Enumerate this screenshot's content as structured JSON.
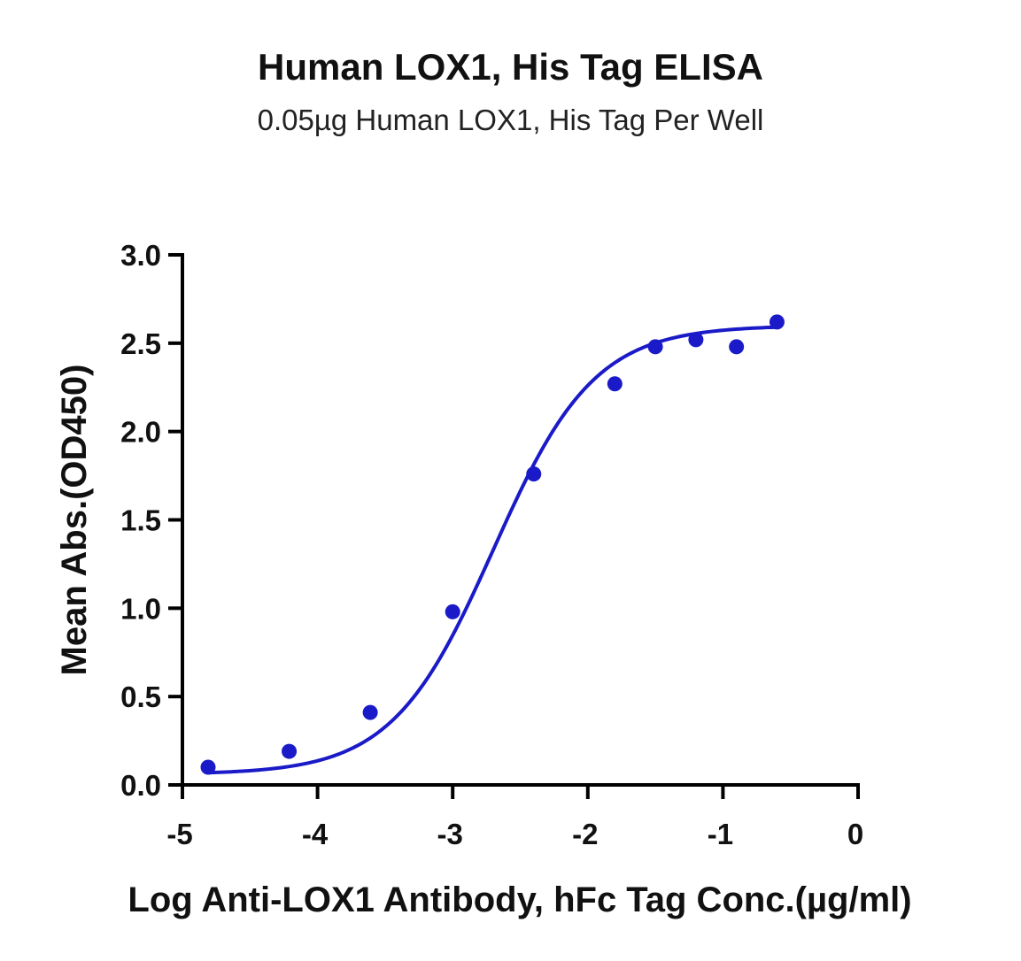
{
  "chart_data": {
    "type": "scatter",
    "title": "Human LOX1, His Tag ELISA",
    "subtitle": "0.05µg Human LOX1, His Tag Per Well",
    "xlabel": "Log Anti-LOX1 Antibody, hFc Tag Conc.(µg/ml)",
    "ylabel": "Mean Abs.(OD450)",
    "xlim": [
      -5,
      0
    ],
    "ylim": [
      0,
      3.0
    ],
    "x_ticks": [
      -5,
      -4,
      -3,
      -2,
      -1,
      0
    ],
    "x_tick_labels": [
      "-5",
      "-4",
      "-3",
      "-2",
      "-1",
      "0"
    ],
    "y_ticks": [
      0,
      0.5,
      1.0,
      1.5,
      2.0,
      2.5,
      3.0
    ],
    "y_tick_labels": [
      "0.0",
      "0.5",
      "1.0",
      "1.5",
      "2.0",
      "2.5",
      "3.0"
    ],
    "grid": false,
    "series": [
      {
        "x": [
          -4.81,
          -4.21,
          -3.61,
          -3.0,
          -2.4,
          -1.8,
          -1.5,
          -1.2,
          -0.9,
          -0.6
        ],
        "y": [
          0.1,
          0.19,
          0.41,
          0.98,
          1.76,
          2.27,
          2.48,
          2.52,
          2.48,
          2.62
        ],
        "color": "#1a1ac8",
        "fit": "4-parameter logistic"
      }
    ]
  }
}
